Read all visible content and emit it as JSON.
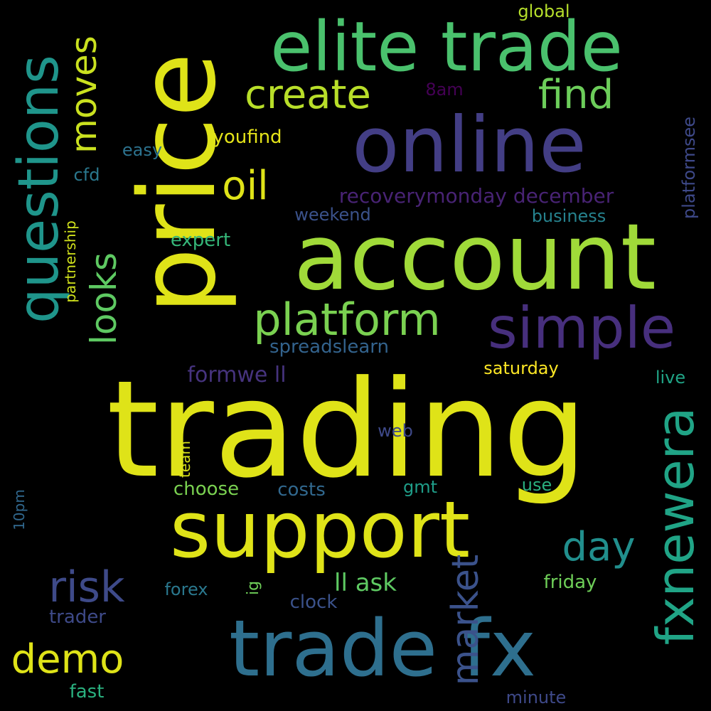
{
  "words": [
    {
      "text": "trading",
      "color": "#dfe318",
      "rotate": false
    },
    {
      "text": "price",
      "color": "#dfe318",
      "rotate": true
    },
    {
      "text": "account",
      "color": "#a0da39",
      "rotate": false
    },
    {
      "text": "online",
      "color": "#433e85",
      "rotate": false
    },
    {
      "text": "elite trade",
      "color": "#4ac16d",
      "rotate": false
    },
    {
      "text": "support",
      "color": "#dfe318",
      "rotate": false
    },
    {
      "text": "trade fx",
      "color": "#2e6f8e",
      "rotate": false
    },
    {
      "text": "questions",
      "color": "#1f958b",
      "rotate": true
    },
    {
      "text": "simple",
      "color": "#472f7d",
      "rotate": false
    },
    {
      "text": "fxnewera",
      "color": "#20a486",
      "rotate": true
    },
    {
      "text": "platform",
      "color": "#7ad151",
      "rotate": false
    },
    {
      "text": "create",
      "color": "#b8de29",
      "rotate": false
    },
    {
      "text": "find",
      "color": "#6ccd5a",
      "rotate": false
    },
    {
      "text": "moves",
      "color": "#cae11f",
      "rotate": true
    },
    {
      "text": "looks",
      "color": "#5ec962",
      "rotate": true
    },
    {
      "text": "oil",
      "color": "#dfe318",
      "rotate": false
    },
    {
      "text": "market",
      "color": "#3b528b",
      "rotate": true
    },
    {
      "text": "risk",
      "color": "#3e4a89",
      "rotate": false
    },
    {
      "text": "day",
      "color": "#218f8d",
      "rotate": false
    },
    {
      "text": "demo",
      "color": "#dfe318",
      "rotate": false
    },
    {
      "text": "recoverymonday december",
      "color": "#482374",
      "rotate": false
    },
    {
      "text": "formwe ll",
      "color": "#46337e",
      "rotate": false
    },
    {
      "text": "spreadslearn",
      "color": "#33638d",
      "rotate": false
    },
    {
      "text": "saturday",
      "color": "#fde725",
      "rotate": false
    },
    {
      "text": "ll ask",
      "color": "#5ec962",
      "rotate": false
    },
    {
      "text": "youfind",
      "color": "#e5e419",
      "rotate": false
    },
    {
      "text": "business",
      "color": "#26828e",
      "rotate": false
    },
    {
      "text": "weekend",
      "color": "#3b528b",
      "rotate": false
    },
    {
      "text": "platformsee",
      "color": "#3e4989",
      "rotate": true
    },
    {
      "text": "easy",
      "color": "#2c728e",
      "rotate": false
    },
    {
      "text": "expert",
      "color": "#35b779",
      "rotate": false
    },
    {
      "text": "global",
      "color": "#b5de2b",
      "rotate": false
    },
    {
      "text": "8am",
      "color": "#440154",
      "rotate": false
    },
    {
      "text": "cfd",
      "color": "#2a788e",
      "rotate": false
    },
    {
      "text": "partnership",
      "color": "#d0e11c",
      "rotate": true
    },
    {
      "text": "live",
      "color": "#20a486",
      "rotate": false
    },
    {
      "text": "web",
      "color": "#3e4989",
      "rotate": false
    },
    {
      "text": "team",
      "color": "#d8e219",
      "rotate": true
    },
    {
      "text": "choose",
      "color": "#7ad151",
      "rotate": false
    },
    {
      "text": "costs",
      "color": "#31688e",
      "rotate": false
    },
    {
      "text": "gmt",
      "color": "#1f9e89",
      "rotate": false
    },
    {
      "text": "use",
      "color": "#2ab07f",
      "rotate": false
    },
    {
      "text": "10pm",
      "color": "#31688e",
      "rotate": true
    },
    {
      "text": "forex",
      "color": "#2a788e",
      "rotate": false
    },
    {
      "text": "ig",
      "color": "#6ece58",
      "rotate": true
    },
    {
      "text": "clock",
      "color": "#3b528b",
      "rotate": false
    },
    {
      "text": "friday",
      "color": "#6ece58",
      "rotate": false
    },
    {
      "text": "trader",
      "color": "#3e4a89",
      "rotate": false
    },
    {
      "text": "fast",
      "color": "#2ab07f",
      "rotate": false
    },
    {
      "text": "minute",
      "color": "#3e4989",
      "rotate": false
    }
  ]
}
